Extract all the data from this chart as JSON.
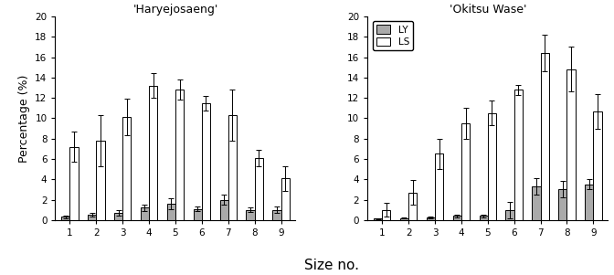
{
  "left_title": "'Haryejosaeng'",
  "right_title": "'Okitsu Wase'",
  "xlabel": "Size no.",
  "ylabel": "Percentage (%)",
  "categories": [
    1,
    2,
    3,
    4,
    5,
    6,
    7,
    8,
    9
  ],
  "ylim": [
    0,
    20
  ],
  "yticks": [
    0,
    2,
    4,
    6,
    8,
    10,
    12,
    14,
    16,
    18,
    20
  ],
  "left_LY_mean": [
    0.3,
    0.5,
    0.7,
    1.2,
    1.6,
    1.1,
    2.0,
    1.0,
    1.0
  ],
  "left_LY_se": [
    0.15,
    0.2,
    0.25,
    0.35,
    0.5,
    0.2,
    0.5,
    0.25,
    0.3
  ],
  "left_LS_mean": [
    7.2,
    7.8,
    10.1,
    13.2,
    12.8,
    11.5,
    10.3,
    6.1,
    4.1
  ],
  "left_LS_se": [
    1.5,
    2.5,
    1.8,
    1.2,
    1.0,
    0.7,
    2.5,
    0.8,
    1.2
  ],
  "right_LY_mean": [
    0.15,
    0.2,
    0.25,
    0.4,
    0.4,
    1.0,
    3.3,
    3.0,
    3.5
  ],
  "right_LY_se": [
    0.05,
    0.05,
    0.1,
    0.15,
    0.15,
    0.8,
    0.8,
    0.8,
    0.5
  ],
  "right_LS_mean": [
    1.0,
    2.7,
    6.5,
    9.5,
    10.5,
    12.8,
    16.4,
    14.8,
    10.7
  ],
  "right_LS_se": [
    0.7,
    1.2,
    1.5,
    1.5,
    1.2,
    0.5,
    1.8,
    2.2,
    1.7
  ],
  "LY_color": "#aaaaaa",
  "LS_color": "#ffffff",
  "bar_edge_color": "#000000",
  "bar_width": 0.32,
  "legend_labels": [
    "LY",
    "LS"
  ],
  "title_fontsize": 9,
  "axis_fontsize": 9,
  "tick_fontsize": 7.5,
  "legend_fontsize": 7.5
}
